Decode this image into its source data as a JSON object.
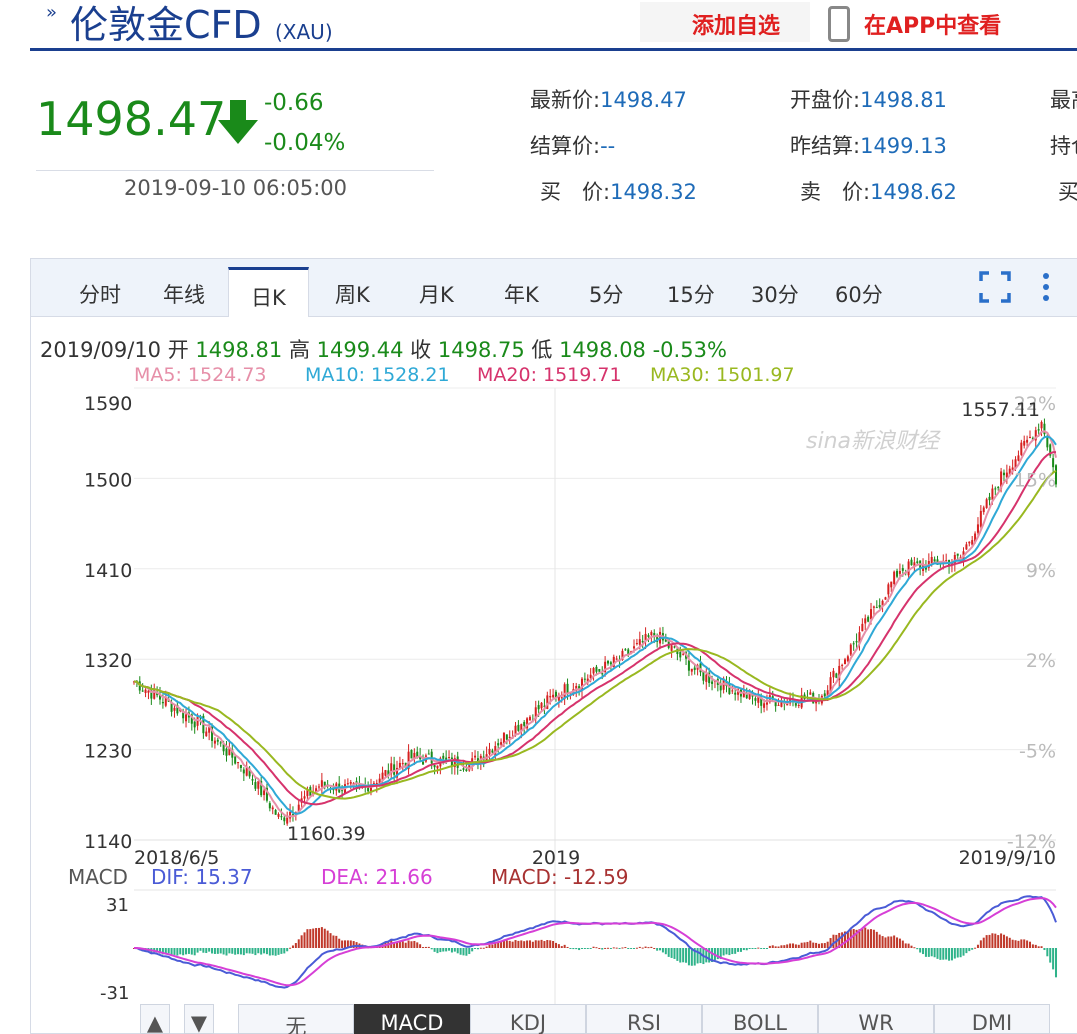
{
  "header": {
    "title": "伦敦金CFD",
    "subtitle": "(XAU)",
    "add_watchlist": "添加自选",
    "view_in_app": "在APP中查看"
  },
  "quote": {
    "price": "1498.47",
    "change": "-0.66",
    "change_pct": "-0.04%",
    "time": "2019-09-10 06:05:00",
    "fields": [
      {
        "label": "最新价:",
        "value": "1498.47"
      },
      {
        "label": "开盘价:",
        "value": "1498.81"
      },
      {
        "label": "最高",
        "value": ""
      },
      {
        "label": "结算价:",
        "value": "--"
      },
      {
        "label": "昨结算:",
        "value": "1499.13"
      },
      {
        "label": "持仓",
        "value": ""
      },
      {
        "label": "买　价:",
        "value": "1498.32"
      },
      {
        "label": "卖　价:",
        "value": "1498.62"
      },
      {
        "label": "买",
        "value": ""
      }
    ]
  },
  "tabs": [
    "分时",
    "年线",
    "日K",
    "周K",
    "月K",
    "年K",
    "5分",
    "15分",
    "30分",
    "60分"
  ],
  "active_tab": "日K",
  "ohlc": {
    "date": "2019/09/10",
    "open_label": "开",
    "open": "1498.81",
    "high_label": "高",
    "high": "1499.44",
    "close_label": "收",
    "close": "1498.75",
    "low_label": "低",
    "low": "1498.08",
    "change": "-0.53%"
  },
  "ma": [
    {
      "label": "MA5: 1524.73",
      "color": "#e68fa8"
    },
    {
      "label": "MA10: 1528.21",
      "color": "#2fa9d6"
    },
    {
      "label": "MA20: 1519.71",
      "color": "#d6336c"
    },
    {
      "label": "MA30: 1501.97",
      "color": "#99b820"
    }
  ],
  "watermark": "sina新浪财经",
  "macd_legend": {
    "name": "MACD",
    "dif": "DIF: 15.37",
    "dea": "DEA: 21.66",
    "macd": "MACD: -12.59",
    "dif_color": "#4a5bd6",
    "dea_color": "#d63fd6",
    "macd_color": "#a83232"
  },
  "indicator_buttons": [
    "无",
    "MACD",
    "KDJ",
    "RSI",
    "BOLL",
    "WR",
    "DMI"
  ],
  "active_indicator": "MACD",
  "nav_buttons": [
    "▲",
    "▼"
  ],
  "colors": {
    "up": "#d62020",
    "down": "#1a8a1a",
    "brand": "#1a3f8f"
  },
  "chart_data": {
    "type": "candlestick",
    "y_ticks": [
      "1590",
      "1500",
      "1410",
      "1320",
      "1230",
      "1140"
    ],
    "y_range": [
      1140,
      1590
    ],
    "pct_ticks": [
      "22%",
      "15%",
      "9%",
      "2%",
      "-5%",
      "-12%"
    ],
    "x_ticks": [
      "2018/6/5",
      "2019",
      "2019/9/10"
    ],
    "max_label": "1557.11",
    "min_label": "1160.39",
    "price_path": [
      [
        "2018/6/5",
        1298
      ],
      [
        "2018/7",
        1255
      ],
      [
        "2018/8",
        1205
      ],
      [
        "2018/8/16",
        1160
      ],
      [
        "2018/9",
        1195
      ],
      [
        "2018/10",
        1190
      ],
      [
        "2018/11",
        1222
      ],
      [
        "2018/12",
        1215
      ],
      [
        "2019",
        1285
      ],
      [
        "2019/2",
        1320
      ],
      [
        "2019/2/20",
        1345
      ],
      [
        "2019/3",
        1305
      ],
      [
        "2019/4",
        1278
      ],
      [
        "2019/5",
        1282
      ],
      [
        "2019/6",
        1410
      ],
      [
        "2019/7",
        1420
      ],
      [
        "2019/8",
        1500
      ],
      [
        "2019/9/4",
        1557
      ],
      [
        "2019/9/10",
        1498
      ]
    ],
    "macd_axis": [
      "31",
      "-31"
    ],
    "macd_range": [
      -31,
      31
    ]
  }
}
